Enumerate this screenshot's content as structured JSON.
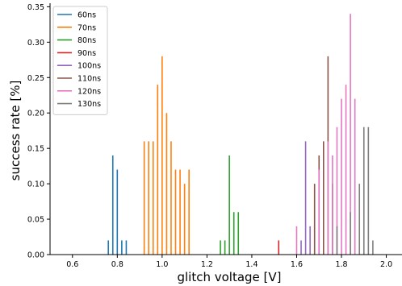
{
  "chart_data": {
    "type": "bar",
    "title": "",
    "xlabel": "glitch voltage [V]",
    "ylabel": "success rate [%]",
    "xlim": [
      0.5,
      2.07
    ],
    "ylim": [
      0,
      0.355
    ],
    "xticks": [
      0.6,
      0.8,
      1.0,
      1.2,
      1.4,
      1.6,
      1.8,
      2.0
    ],
    "xtick_labels": [
      "0.6",
      "0.8",
      "1.0",
      "1.2",
      "1.4",
      "1.6",
      "1.8",
      "2.0"
    ],
    "yticks": [
      0.0,
      0.05,
      0.1,
      0.15,
      0.2,
      0.25,
      0.3,
      0.35
    ],
    "ytick_labels": [
      "0.00",
      "0.05",
      "0.10",
      "0.15",
      "0.20",
      "0.25",
      "0.30",
      "0.35"
    ],
    "grid": false,
    "legend_position": "top-left",
    "series": [
      {
        "name": "60ns",
        "color": "#1f77b4",
        "x": [
          0.76,
          0.78,
          0.8,
          0.82,
          0.84
        ],
        "values": [
          0.02,
          0.14,
          0.12,
          0.02,
          0.02
        ]
      },
      {
        "name": "70ns",
        "color": "#ff7f0e",
        "x": [
          0.92,
          0.94,
          0.96,
          0.98,
          1.0,
          1.02,
          1.04,
          1.06,
          1.08,
          1.1,
          1.12
        ],
        "values": [
          0.16,
          0.16,
          0.16,
          0.24,
          0.28,
          0.2,
          0.16,
          0.12,
          0.12,
          0.1,
          0.12
        ]
      },
      {
        "name": "80ns",
        "color": "#2ca02c",
        "x": [
          1.26,
          1.28,
          1.3,
          1.32,
          1.34
        ],
        "values": [
          0.02,
          0.02,
          0.14,
          0.06,
          0.06
        ]
      },
      {
        "name": "90ns",
        "color": "#d62728",
        "x": [
          1.52
        ],
        "values": [
          0.02
        ]
      },
      {
        "name": "100ns",
        "color": "#9467bd",
        "x": [
          1.62,
          1.64,
          1.66
        ],
        "values": [
          0.02,
          0.16,
          0.04
        ]
      },
      {
        "name": "110ns",
        "color": "#8c564b",
        "x": [
          1.68,
          1.7,
          1.72,
          1.74,
          1.76
        ],
        "values": [
          0.1,
          0.14,
          0.16,
          0.28,
          0.1
        ]
      },
      {
        "name": "120ns",
        "color": "#e377c2",
        "x": [
          1.6,
          1.7,
          1.74,
          1.76,
          1.78,
          1.8,
          1.82,
          1.84,
          1.86
        ],
        "values": [
          0.04,
          0.12,
          0.16,
          0.14,
          0.18,
          0.22,
          0.24,
          0.34,
          0.22
        ]
      },
      {
        "name": "130ns",
        "color": "#7f7f7f",
        "x": [
          1.78,
          1.84,
          1.88,
          1.9,
          1.92,
          1.94
        ],
        "values": [
          0.04,
          0.06,
          0.1,
          0.18,
          0.18,
          0.02
        ]
      }
    ]
  }
}
